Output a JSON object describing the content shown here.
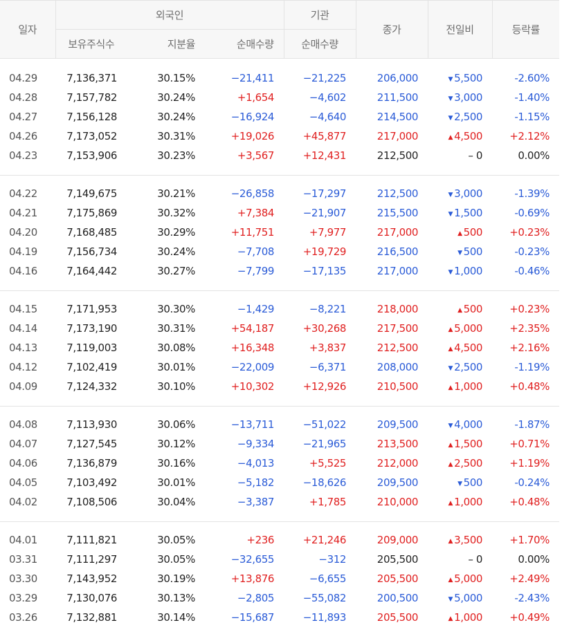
{
  "header": {
    "date": "일자",
    "foreign": "외국인",
    "institution": "기관",
    "close": "종가",
    "change": "전일비",
    "rate": "등락률",
    "holdings": "보유주식수",
    "share": "지분율",
    "foreign_net": "순매수량",
    "inst_net": "순매수량"
  },
  "colors": {
    "up": "#e02020",
    "down": "#2a5bd7"
  },
  "icons": {
    "up": "triangle-up-icon",
    "down": "triangle-down-icon"
  },
  "groups": [
    [
      {
        "date": "04.29",
        "holdings": "7,136,371",
        "share": "30.15%",
        "fnet": "−21,411",
        "inet": "−21,225",
        "close": "206,000",
        "chg": "5,500",
        "dir": "down",
        "rate": "-2.60%"
      },
      {
        "date": "04.28",
        "holdings": "7,157,782",
        "share": "30.24%",
        "fnet": "+1,654",
        "inet": "−4,602",
        "close": "211,500",
        "chg": "3,000",
        "dir": "down",
        "rate": "-1.40%"
      },
      {
        "date": "04.27",
        "holdings": "7,156,128",
        "share": "30.24%",
        "fnet": "−16,924",
        "inet": "−4,640",
        "close": "214,500",
        "chg": "2,500",
        "dir": "down",
        "rate": "-1.15%"
      },
      {
        "date": "04.26",
        "holdings": "7,173,052",
        "share": "30.31%",
        "fnet": "+19,026",
        "inet": "+45,877",
        "close": "217,000",
        "chg": "4,500",
        "dir": "up",
        "rate": "+2.12%"
      },
      {
        "date": "04.23",
        "holdings": "7,153,906",
        "share": "30.23%",
        "fnet": "+3,567",
        "inet": "+12,431",
        "close": "212,500",
        "chg": "0",
        "dir": "flat",
        "rate": "0.00%"
      }
    ],
    [
      {
        "date": "04.22",
        "holdings": "7,149,675",
        "share": "30.21%",
        "fnet": "−26,858",
        "inet": "−17,297",
        "close": "212,500",
        "chg": "3,000",
        "dir": "down",
        "rate": "-1.39%"
      },
      {
        "date": "04.21",
        "holdings": "7,175,869",
        "share": "30.32%",
        "fnet": "+7,384",
        "inet": "−21,907",
        "close": "215,500",
        "chg": "1,500",
        "dir": "down",
        "rate": "-0.69%"
      },
      {
        "date": "04.20",
        "holdings": "7,168,485",
        "share": "30.29%",
        "fnet": "+11,751",
        "inet": "+7,977",
        "close": "217,000",
        "chg": "500",
        "dir": "up",
        "rate": "+0.23%"
      },
      {
        "date": "04.19",
        "holdings": "7,156,734",
        "share": "30.24%",
        "fnet": "−7,708",
        "inet": "+19,729",
        "close": "216,500",
        "chg": "500",
        "dir": "down",
        "rate": "-0.23%"
      },
      {
        "date": "04.16",
        "holdings": "7,164,442",
        "share": "30.27%",
        "fnet": "−7,799",
        "inet": "−17,135",
        "close": "217,000",
        "chg": "1,000",
        "dir": "down",
        "rate": "-0.46%"
      }
    ],
    [
      {
        "date": "04.15",
        "holdings": "7,171,953",
        "share": "30.30%",
        "fnet": "−1,429",
        "inet": "−8,221",
        "close": "218,000",
        "chg": "500",
        "dir": "up",
        "rate": "+0.23%"
      },
      {
        "date": "04.14",
        "holdings": "7,173,190",
        "share": "30.31%",
        "fnet": "+54,187",
        "inet": "+30,268",
        "close": "217,500",
        "chg": "5,000",
        "dir": "up",
        "rate": "+2.35%"
      },
      {
        "date": "04.13",
        "holdings": "7,119,003",
        "share": "30.08%",
        "fnet": "+16,348",
        "inet": "+3,837",
        "close": "212,500",
        "chg": "4,500",
        "dir": "up",
        "rate": "+2.16%"
      },
      {
        "date": "04.12",
        "holdings": "7,102,419",
        "share": "30.01%",
        "fnet": "−22,009",
        "inet": "−6,371",
        "close": "208,000",
        "chg": "2,500",
        "dir": "down",
        "rate": "-1.19%"
      },
      {
        "date": "04.09",
        "holdings": "7,124,332",
        "share": "30.10%",
        "fnet": "+10,302",
        "inet": "+12,926",
        "close": "210,500",
        "chg": "1,000",
        "dir": "up",
        "rate": "+0.48%"
      }
    ],
    [
      {
        "date": "04.08",
        "holdings": "7,113,930",
        "share": "30.06%",
        "fnet": "−13,711",
        "inet": "−51,022",
        "close": "209,500",
        "chg": "4,000",
        "dir": "down",
        "rate": "-1.87%"
      },
      {
        "date": "04.07",
        "holdings": "7,127,545",
        "share": "30.12%",
        "fnet": "−9,334",
        "inet": "−21,965",
        "close": "213,500",
        "chg": "1,500",
        "dir": "up",
        "rate": "+0.71%"
      },
      {
        "date": "04.06",
        "holdings": "7,136,879",
        "share": "30.16%",
        "fnet": "−4,013",
        "inet": "+5,525",
        "close": "212,000",
        "chg": "2,500",
        "dir": "up",
        "rate": "+1.19%"
      },
      {
        "date": "04.05",
        "holdings": "7,103,492",
        "share": "30.01%",
        "fnet": "−5,182",
        "inet": "−18,626",
        "close": "209,500",
        "chg": "500",
        "dir": "down",
        "rate": "-0.24%"
      },
      {
        "date": "04.02",
        "holdings": "7,108,506",
        "share": "30.04%",
        "fnet": "−3,387",
        "inet": "+1,785",
        "close": "210,000",
        "chg": "1,000",
        "dir": "up",
        "rate": "+0.48%"
      }
    ],
    [
      {
        "date": "04.01",
        "holdings": "7,111,821",
        "share": "30.05%",
        "fnet": "+236",
        "inet": "+21,246",
        "close": "209,000",
        "chg": "3,500",
        "dir": "up",
        "rate": "+1.70%"
      },
      {
        "date": "03.31",
        "holdings": "7,111,297",
        "share": "30.05%",
        "fnet": "−32,655",
        "inet": "−312",
        "close": "205,500",
        "chg": "0",
        "dir": "flat",
        "rate": "0.00%"
      },
      {
        "date": "03.30",
        "holdings": "7,143,952",
        "share": "30.19%",
        "fnet": "+13,876",
        "inet": "−6,655",
        "close": "205,500",
        "chg": "5,000",
        "dir": "up",
        "rate": "+2.49%"
      },
      {
        "date": "03.29",
        "holdings": "7,130,076",
        "share": "30.13%",
        "fnet": "−2,805",
        "inet": "−55,082",
        "close": "200,500",
        "chg": "5,000",
        "dir": "down",
        "rate": "-2.43%"
      },
      {
        "date": "03.26",
        "holdings": "7,132,881",
        "share": "30.14%",
        "fnet": "−15,687",
        "inet": "−11,893",
        "close": "205,500",
        "chg": "1,000",
        "dir": "up",
        "rate": "+0.49%"
      }
    ]
  ]
}
